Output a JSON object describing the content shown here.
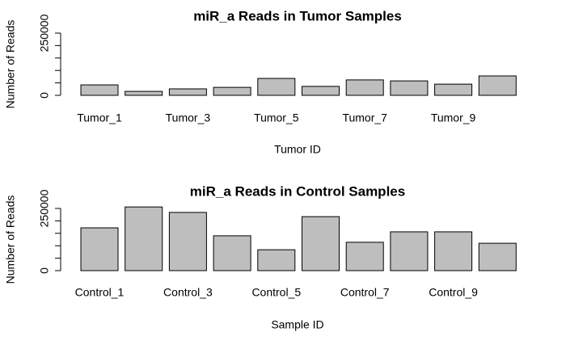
{
  "chart_data": [
    {
      "type": "bar",
      "title": "miR_a Reads in Tumor Samples",
      "x_label": "Tumor ID",
      "y_label": "Number of Reads",
      "categories": [
        "Tumor_1",
        null,
        "Tumor_3",
        null,
        "Tumor_5",
        null,
        "Tumor_7",
        null,
        "Tumor_9",
        null
      ],
      "values": [
        42000,
        16000,
        26000,
        32000,
        68000,
        36000,
        62000,
        58000,
        45000,
        78000
      ],
      "color": "#bebebe",
      "ylim": [
        0,
        250000
      ],
      "yticks": [
        0,
        {
          "value": 50000,
          "label": null
        },
        {
          "value": 100000,
          "label": null
        },
        {
          "value": 150000,
          "label": null
        },
        {
          "value": 200000,
          "label": null
        },
        250000
      ]
    },
    {
      "type": "bar",
      "title": "miR_a Reads in Control Samples",
      "x_label": "Sample ID",
      "y_label": "Number of Reads",
      "categories": [
        "Control_1",
        null,
        "Control_3",
        null,
        "Control_5",
        null,
        "Control_7",
        null,
        "Control_9",
        null
      ],
      "values": [
        172000,
        256000,
        234000,
        140000,
        84000,
        217000,
        114000,
        156000,
        156000,
        110000
      ],
      "color": "#bebebe",
      "ylim": [
        0,
        250000
      ],
      "yticks": [
        0,
        {
          "value": 50000,
          "label": null
        },
        {
          "value": 100000,
          "label": null
        },
        {
          "value": 150000,
          "label": null
        },
        {
          "value": 200000,
          "label": null
        },
        250000
      ]
    }
  ]
}
